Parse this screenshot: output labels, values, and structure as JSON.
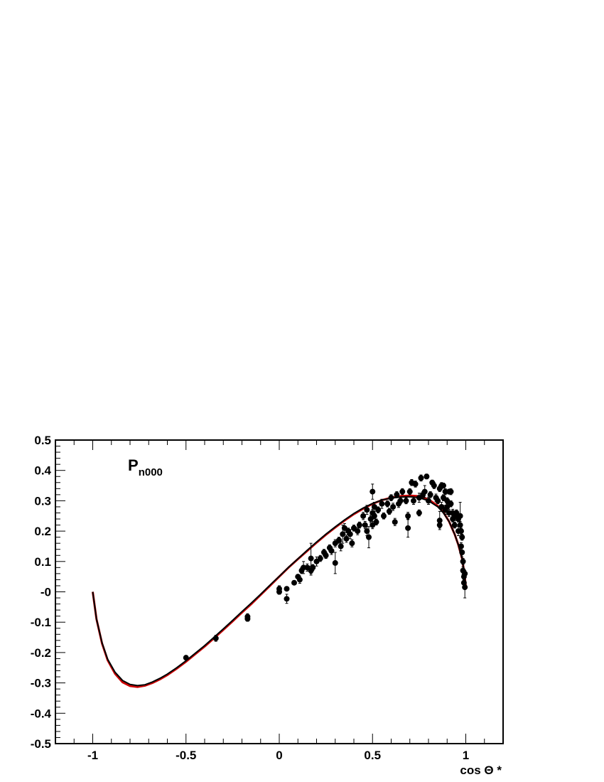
{
  "chart_data": {
    "type": "scatter",
    "xlabel": "cos Θ *",
    "ylabel": "",
    "xlim": [
      -1.2,
      1.2
    ],
    "ylim": [
      -0.5,
      0.5
    ],
    "x_ticks": [
      "-1",
      "-0.5",
      "0",
      "0.5",
      "1"
    ],
    "x_tick_values": [
      -1,
      -0.5,
      0,
      0.5,
      1
    ],
    "y_ticks": [
      "0.5",
      "0.4",
      "0.3",
      "0.2",
      "0.1",
      "-0",
      "-0.1",
      "-0.2",
      "-0.3",
      "-0.4",
      "-0.5"
    ],
    "y_tick_values": [
      0.5,
      0.4,
      0.3,
      0.2,
      0.1,
      0,
      -0.1,
      -0.2,
      -0.3,
      -0.4,
      -0.5
    ],
    "annotation": {
      "main": "P",
      "sub": "n000"
    },
    "grid": false,
    "colors": {
      "points": "#000000",
      "curve_black": "#000000",
      "curve_red": "#cc0000"
    },
    "curves": [
      {
        "color": "#cc0000",
        "x": [
          -1,
          -0.98,
          -0.95,
          -0.92,
          -0.88,
          -0.84,
          -0.8,
          -0.76,
          -0.72,
          -0.68,
          -0.64,
          -0.6,
          -0.55,
          -0.5,
          -0.45,
          -0.4,
          -0.35,
          -0.3,
          -0.25,
          -0.2,
          -0.15,
          -0.1,
          -0.05,
          0,
          0.05,
          0.1,
          0.15,
          0.2,
          0.25,
          0.3,
          0.35,
          0.4,
          0.45,
          0.5,
          0.55,
          0.6,
          0.65,
          0.7,
          0.75,
          0.8,
          0.85,
          0.88,
          0.91,
          0.94,
          0.96,
          0.98,
          0.99,
          1
        ],
        "y": [
          0,
          -0.09,
          -0.17,
          -0.225,
          -0.27,
          -0.298,
          -0.31,
          -0.313,
          -0.309,
          -0.3,
          -0.288,
          -0.274,
          -0.253,
          -0.23,
          -0.205,
          -0.18,
          -0.153,
          -0.125,
          -0.097,
          -0.068,
          -0.04,
          -0.01,
          0.02,
          0.05,
          0.08,
          0.108,
          0.135,
          0.162,
          0.188,
          0.212,
          0.235,
          0.256,
          0.274,
          0.29,
          0.302,
          0.31,
          0.315,
          0.317,
          0.315,
          0.305,
          0.283,
          0.262,
          0.232,
          0.19,
          0.155,
          0.11,
          0.07,
          0.02
        ]
      },
      {
        "color": "#000000",
        "x": [
          -1,
          -0.98,
          -0.95,
          -0.92,
          -0.88,
          -0.84,
          -0.8,
          -0.76,
          -0.72,
          -0.68,
          -0.64,
          -0.6,
          -0.55,
          -0.5,
          -0.45,
          -0.4,
          -0.35,
          -0.3,
          -0.25,
          -0.2,
          -0.15,
          -0.1,
          -0.05,
          0,
          0.05,
          0.1,
          0.15,
          0.2,
          0.25,
          0.3,
          0.35,
          0.4,
          0.45,
          0.5,
          0.55,
          0.6,
          0.65,
          0.7,
          0.75,
          0.8,
          0.85,
          0.88,
          0.91,
          0.94,
          0.96,
          0.98,
          0.99,
          1
        ],
        "y": [
          0,
          -0.09,
          -0.168,
          -0.222,
          -0.265,
          -0.292,
          -0.305,
          -0.309,
          -0.306,
          -0.297,
          -0.285,
          -0.271,
          -0.25,
          -0.227,
          -0.202,
          -0.177,
          -0.15,
          -0.122,
          -0.094,
          -0.065,
          -0.037,
          -0.008,
          0.022,
          0.051,
          0.081,
          0.109,
          0.137,
          0.164,
          0.19,
          0.214,
          0.237,
          0.258,
          0.276,
          0.291,
          0.302,
          0.309,
          0.312,
          0.313,
          0.31,
          0.3,
          0.28,
          0.26,
          0.232,
          0.19,
          0.155,
          0.11,
          0.07,
          0.02
        ]
      }
    ],
    "points": [
      [
        -0.5,
        -0.217,
        0.006
      ],
      [
        -0.34,
        -0.153,
        0.01
      ],
      [
        -0.17,
        -0.082,
        0.01
      ],
      [
        -0.17,
        -0.089,
        0.008
      ],
      [
        0.0,
        0.01,
        0.01
      ],
      [
        0.0,
        0.0,
        0.008
      ],
      [
        0.04,
        -0.023,
        0.015
      ],
      [
        0.04,
        0.01,
        0.006
      ],
      [
        0.08,
        0.03,
        0.006
      ],
      [
        0.1,
        0.05,
        0.006
      ],
      [
        0.11,
        0.04,
        0.012
      ],
      [
        0.12,
        0.07,
        0.01
      ],
      [
        0.13,
        0.08,
        0.02
      ],
      [
        0.15,
        0.08,
        0.012
      ],
      [
        0.17,
        0.07,
        0.015
      ],
      [
        0.17,
        0.11,
        0.05
      ],
      [
        0.18,
        0.08,
        0.01
      ],
      [
        0.2,
        0.1,
        0.015
      ],
      [
        0.22,
        0.11,
        0.01
      ],
      [
        0.24,
        0.13,
        0.01
      ],
      [
        0.25,
        0.12,
        0.01
      ],
      [
        0.27,
        0.145,
        0.01
      ],
      [
        0.28,
        0.135,
        0.012
      ],
      [
        0.3,
        0.095,
        0.035
      ],
      [
        0.3,
        0.16,
        0.012
      ],
      [
        0.32,
        0.17,
        0.01
      ],
      [
        0.33,
        0.15,
        0.015
      ],
      [
        0.34,
        0.19,
        0.03
      ],
      [
        0.35,
        0.21,
        0.015
      ],
      [
        0.36,
        0.175,
        0.012
      ],
      [
        0.37,
        0.2,
        0.01
      ],
      [
        0.38,
        0.19,
        0.015
      ],
      [
        0.39,
        0.16,
        0.012
      ],
      [
        0.4,
        0.21,
        0.01
      ],
      [
        0.42,
        0.2,
        0.012
      ],
      [
        0.43,
        0.22,
        0.01
      ],
      [
        0.45,
        0.25,
        0.012
      ],
      [
        0.46,
        0.22,
        0.012
      ],
      [
        0.47,
        0.27,
        0.015
      ],
      [
        0.47,
        0.2,
        0.015
      ],
      [
        0.48,
        0.18,
        0.035
      ],
      [
        0.49,
        0.24,
        0.012
      ],
      [
        0.5,
        0.22,
        0.012
      ],
      [
        0.5,
        0.26,
        0.012
      ],
      [
        0.5,
        0.33,
        0.025
      ],
      [
        0.51,
        0.25,
        0.01
      ],
      [
        0.51,
        0.28,
        0.015
      ],
      [
        0.52,
        0.23,
        0.01
      ],
      [
        0.53,
        0.27,
        0.01
      ],
      [
        0.55,
        0.29,
        0.015
      ],
      [
        0.56,
        0.25,
        0.01
      ],
      [
        0.58,
        0.29,
        0.01
      ],
      [
        0.59,
        0.265,
        0.01
      ],
      [
        0.6,
        0.31,
        0.01
      ],
      [
        0.61,
        0.28,
        0.012
      ],
      [
        0.62,
        0.23,
        0.012
      ],
      [
        0.63,
        0.32,
        0.01
      ],
      [
        0.64,
        0.29,
        0.012
      ],
      [
        0.65,
        0.3,
        0.01
      ],
      [
        0.66,
        0.33,
        0.01
      ],
      [
        0.68,
        0.3,
        0.01
      ],
      [
        0.69,
        0.25,
        0.012
      ],
      [
        0.69,
        0.21,
        0.03
      ],
      [
        0.7,
        0.33,
        0.01
      ],
      [
        0.71,
        0.36,
        0.01
      ],
      [
        0.72,
        0.3,
        0.012
      ],
      [
        0.73,
        0.355,
        0.01
      ],
      [
        0.75,
        0.31,
        0.015
      ],
      [
        0.75,
        0.26,
        0.01
      ],
      [
        0.76,
        0.375,
        0.01
      ],
      [
        0.77,
        0.32,
        0.01
      ],
      [
        0.78,
        0.33,
        0.02
      ],
      [
        0.79,
        0.38,
        0.008
      ],
      [
        0.8,
        0.3,
        0.012
      ],
      [
        0.81,
        0.32,
        0.01
      ],
      [
        0.82,
        0.36,
        0.008
      ],
      [
        0.83,
        0.35,
        0.01
      ],
      [
        0.84,
        0.31,
        0.012
      ],
      [
        0.85,
        0.3,
        0.01
      ],
      [
        0.86,
        0.34,
        0.01
      ],
      [
        0.86,
        0.235,
        0.03
      ],
      [
        0.86,
        0.22,
        0.01
      ],
      [
        0.87,
        0.28,
        0.015
      ],
      [
        0.87,
        0.35,
        0.01
      ],
      [
        0.88,
        0.31,
        0.01
      ],
      [
        0.88,
        0.35,
        0.008
      ],
      [
        0.89,
        0.33,
        0.01
      ],
      [
        0.89,
        0.27,
        0.015
      ],
      [
        0.9,
        0.3,
        0.01
      ],
      [
        0.9,
        0.28,
        0.012
      ],
      [
        0.91,
        0.33,
        0.008
      ],
      [
        0.91,
        0.26,
        0.012
      ],
      [
        0.92,
        0.29,
        0.01
      ],
      [
        0.92,
        0.33,
        0.01
      ],
      [
        0.93,
        0.24,
        0.01
      ],
      [
        0.93,
        0.26,
        0.012
      ],
      [
        0.94,
        0.25,
        0.015
      ],
      [
        0.94,
        0.22,
        0.01
      ],
      [
        0.95,
        0.26,
        0.01
      ],
      [
        0.95,
        0.25,
        0.015
      ],
      [
        0.96,
        0.24,
        0.01
      ],
      [
        0.96,
        0.2,
        0.015
      ],
      [
        0.97,
        0.22,
        0.012
      ],
      [
        0.97,
        0.25,
        0.045
      ],
      [
        0.975,
        0.2,
        0.01
      ],
      [
        0.975,
        0.15,
        0.012
      ],
      [
        0.98,
        0.18,
        0.01
      ],
      [
        0.98,
        0.13,
        0.015
      ],
      [
        0.985,
        0.1,
        0.01
      ],
      [
        0.985,
        0.07,
        0.012
      ],
      [
        0.99,
        0.05,
        0.01
      ],
      [
        0.99,
        0.03,
        0.012
      ],
      [
        0.995,
        0.015,
        0.035
      ],
      [
        0.995,
        0.06,
        0.01
      ]
    ]
  }
}
